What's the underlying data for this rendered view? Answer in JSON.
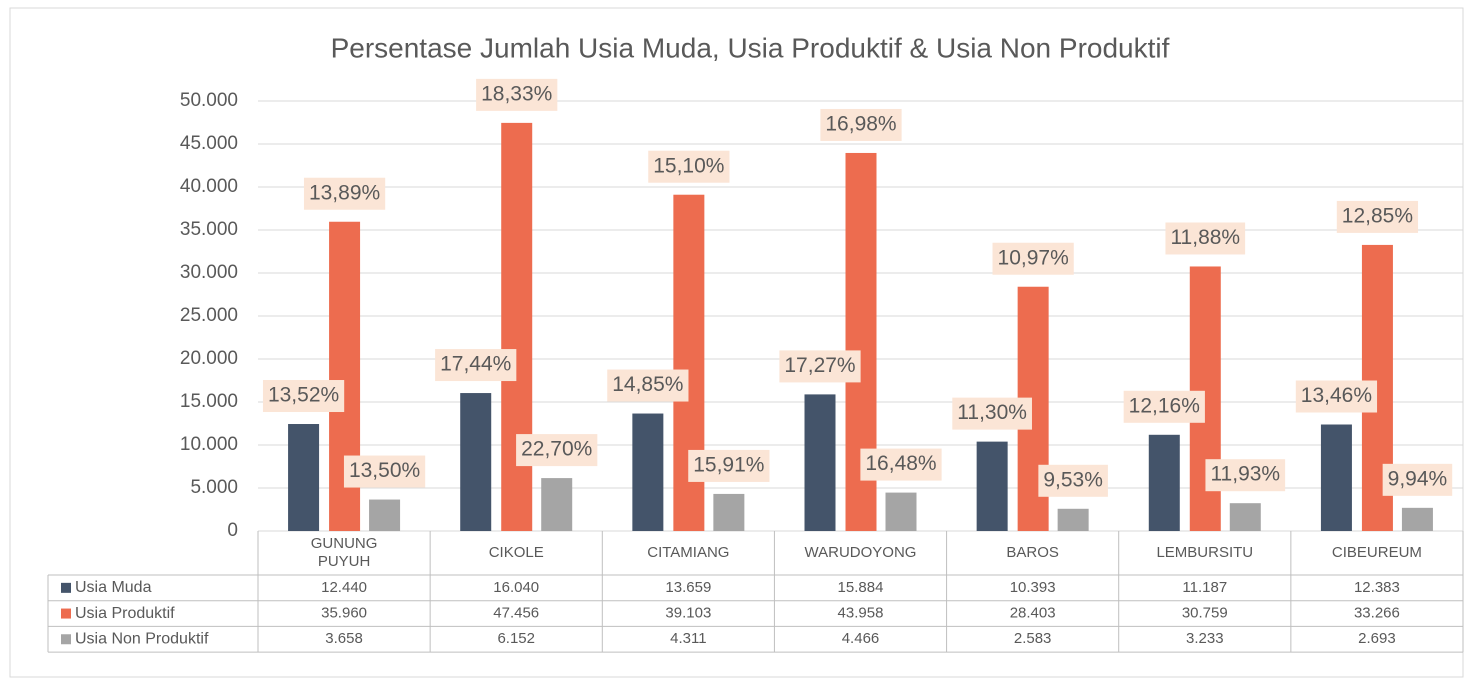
{
  "chart_data": {
    "type": "bar",
    "title": "Persentase Jumlah Usia Muda, Usia Produktif & Usia Non Produktif",
    "categories": [
      "GUNUNG PUYUH",
      "CIKOLE",
      "CITAMIANG",
      "WARUDOYONG",
      "BAROS",
      "LEMBURSITU",
      "CIBEUREUM"
    ],
    "series": [
      {
        "name": "Usia Muda",
        "color": "#44546a",
        "values": [
          12440,
          16040,
          13659,
          15884,
          10393,
          11187,
          12383
        ],
        "value_labels": [
          "12.440",
          "16.040",
          "13.659",
          "15.884",
          "10.393",
          "11.187",
          "12.383"
        ],
        "percent_labels": [
          "13,52%",
          "17,44%",
          "14,85%",
          "17,27%",
          "11,30%",
          "12,16%",
          "13,46%"
        ]
      },
      {
        "name": "Usia Produktif",
        "color": "#ed6c4f",
        "values": [
          35960,
          47456,
          39103,
          43958,
          28403,
          30759,
          33266
        ],
        "value_labels": [
          "35.960",
          "47.456",
          "39.103",
          "43.958",
          "28.403",
          "30.759",
          "33.266"
        ],
        "percent_labels": [
          "13,89%",
          "18,33%",
          "15,10%",
          "16,98%",
          "10,97%",
          "11,88%",
          "12,85%"
        ]
      },
      {
        "name": "Usia Non Produktif",
        "color": "#a5a5a5",
        "values": [
          3658,
          6152,
          4311,
          4466,
          2583,
          3233,
          2693
        ],
        "value_labels": [
          "3.658",
          "6.152",
          "4.311",
          "4.466",
          "2.583",
          "3.233",
          "2.693"
        ],
        "percent_labels": [
          "13,50%",
          "22,70%",
          "15,91%",
          "16,48%",
          "9,53%",
          "11,93%",
          "9,94%"
        ]
      }
    ],
    "ylim": [
      0,
      50000
    ],
    "yticks": [
      0,
      {
        "value": 5000,
        "label": "5.000"
      },
      {
        "value": 10000,
        "label": "10.000"
      },
      {
        "value": 15000,
        "label": "15.000"
      },
      {
        "value": 20000,
        "label": "20.000"
      },
      {
        "value": 25000,
        "label": "25.000"
      },
      {
        "value": 30000,
        "label": "30.000"
      },
      {
        "value": 35000,
        "label": "35.000"
      },
      {
        "value": 40000,
        "label": "40.000"
      },
      {
        "value": 45000,
        "label": "45.000"
      },
      {
        "value": 50000,
        "label": "50.000"
      }
    ],
    "grid": true,
    "label_background": "#fbe5d6"
  }
}
